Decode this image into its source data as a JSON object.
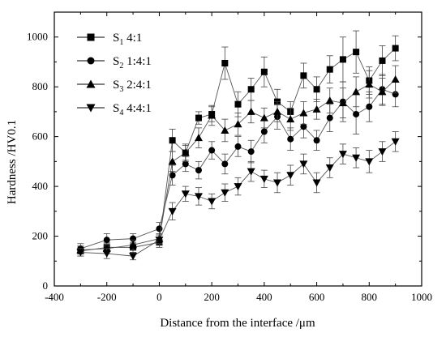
{
  "chart_data": {
    "type": "line",
    "xlabel": "Distance from the interface /μm",
    "ylabel": "Hardness /HV0.1",
    "xlim": [
      -400,
      1000
    ],
    "ylim": [
      0,
      1100
    ],
    "xticks": [
      -400,
      -200,
      0,
      200,
      400,
      600,
      800,
      1000
    ],
    "yticks": [
      0,
      200,
      400,
      600,
      800,
      1000
    ],
    "xtick_labels": [
      "-400",
      "-200",
      "0",
      "200",
      "400",
      "600",
      "800",
      "1000"
    ],
    "ytick_labels": [
      "0",
      "200",
      "400",
      "600",
      "800",
      "1000"
    ],
    "grid": false,
    "legend_position": "top-left",
    "x": [
      -300,
      -200,
      -100,
      0,
      50,
      100,
      150,
      200,
      250,
      300,
      350,
      400,
      450,
      500,
      550,
      600,
      650,
      700,
      750,
      800,
      850,
      900
    ],
    "series": [
      {
        "name": "S1 4:1",
        "name_main": "S",
        "name_sub": "1",
        "name_rest": " 4:1",
        "marker": "square",
        "values": [
          140,
          155,
          155,
          175,
          585,
          535,
          675,
          690,
          895,
          730,
          790,
          860,
          740,
          700,
          845,
          790,
          870,
          910,
          940,
          825,
          905,
          955
        ],
        "errors": [
          20,
          20,
          20,
          20,
          45,
          30,
          25,
          30,
          65,
          50,
          45,
          60,
          50,
          40,
          50,
          50,
          55,
          90,
          85,
          55,
          60,
          50
        ]
      },
      {
        "name": "S2 1:4:1",
        "name_main": "S",
        "name_sub": "2",
        "name_rest": " 1:4:1",
        "marker": "circle",
        "values": [
          150,
          185,
          190,
          230,
          445,
          490,
          465,
          545,
          490,
          560,
          540,
          620,
          680,
          590,
          640,
          585,
          675,
          740,
          690,
          720,
          790,
          770
        ],
        "errors": [
          20,
          25,
          20,
          25,
          40,
          30,
          35,
          35,
          40,
          40,
          45,
          45,
          50,
          45,
          45,
          40,
          55,
          80,
          80,
          60,
          60,
          50
        ]
      },
      {
        "name": "S3 2:4:1",
        "name_main": "S",
        "name_sub": "3",
        "name_rest": " 2:4:1",
        "marker": "triangle-up",
        "values": [
          145,
          150,
          165,
          190,
          500,
          535,
          595,
          685,
          625,
          650,
          700,
          675,
          700,
          670,
          695,
          710,
          745,
          735,
          780,
          810,
          780,
          830
        ],
        "errors": [
          15,
          20,
          20,
          20,
          40,
          35,
          40,
          40,
          45,
          45,
          45,
          40,
          40,
          45,
          45,
          40,
          50,
          60,
          60,
          55,
          55,
          55
        ]
      },
      {
        "name": "S4 4:4:1",
        "name_main": "S",
        "name_sub": "4",
        "name_rest": " 4:4:1",
        "marker": "triangle-down",
        "values": [
          135,
          130,
          120,
          185,
          300,
          370,
          360,
          340,
          375,
          400,
          460,
          430,
          415,
          445,
          490,
          415,
          475,
          530,
          515,
          500,
          540,
          580
        ],
        "errors": [
          15,
          20,
          15,
          20,
          35,
          30,
          35,
          30,
          35,
          35,
          40,
          35,
          40,
          40,
          40,
          40,
          40,
          40,
          40,
          45,
          40,
          40
        ]
      }
    ]
  }
}
